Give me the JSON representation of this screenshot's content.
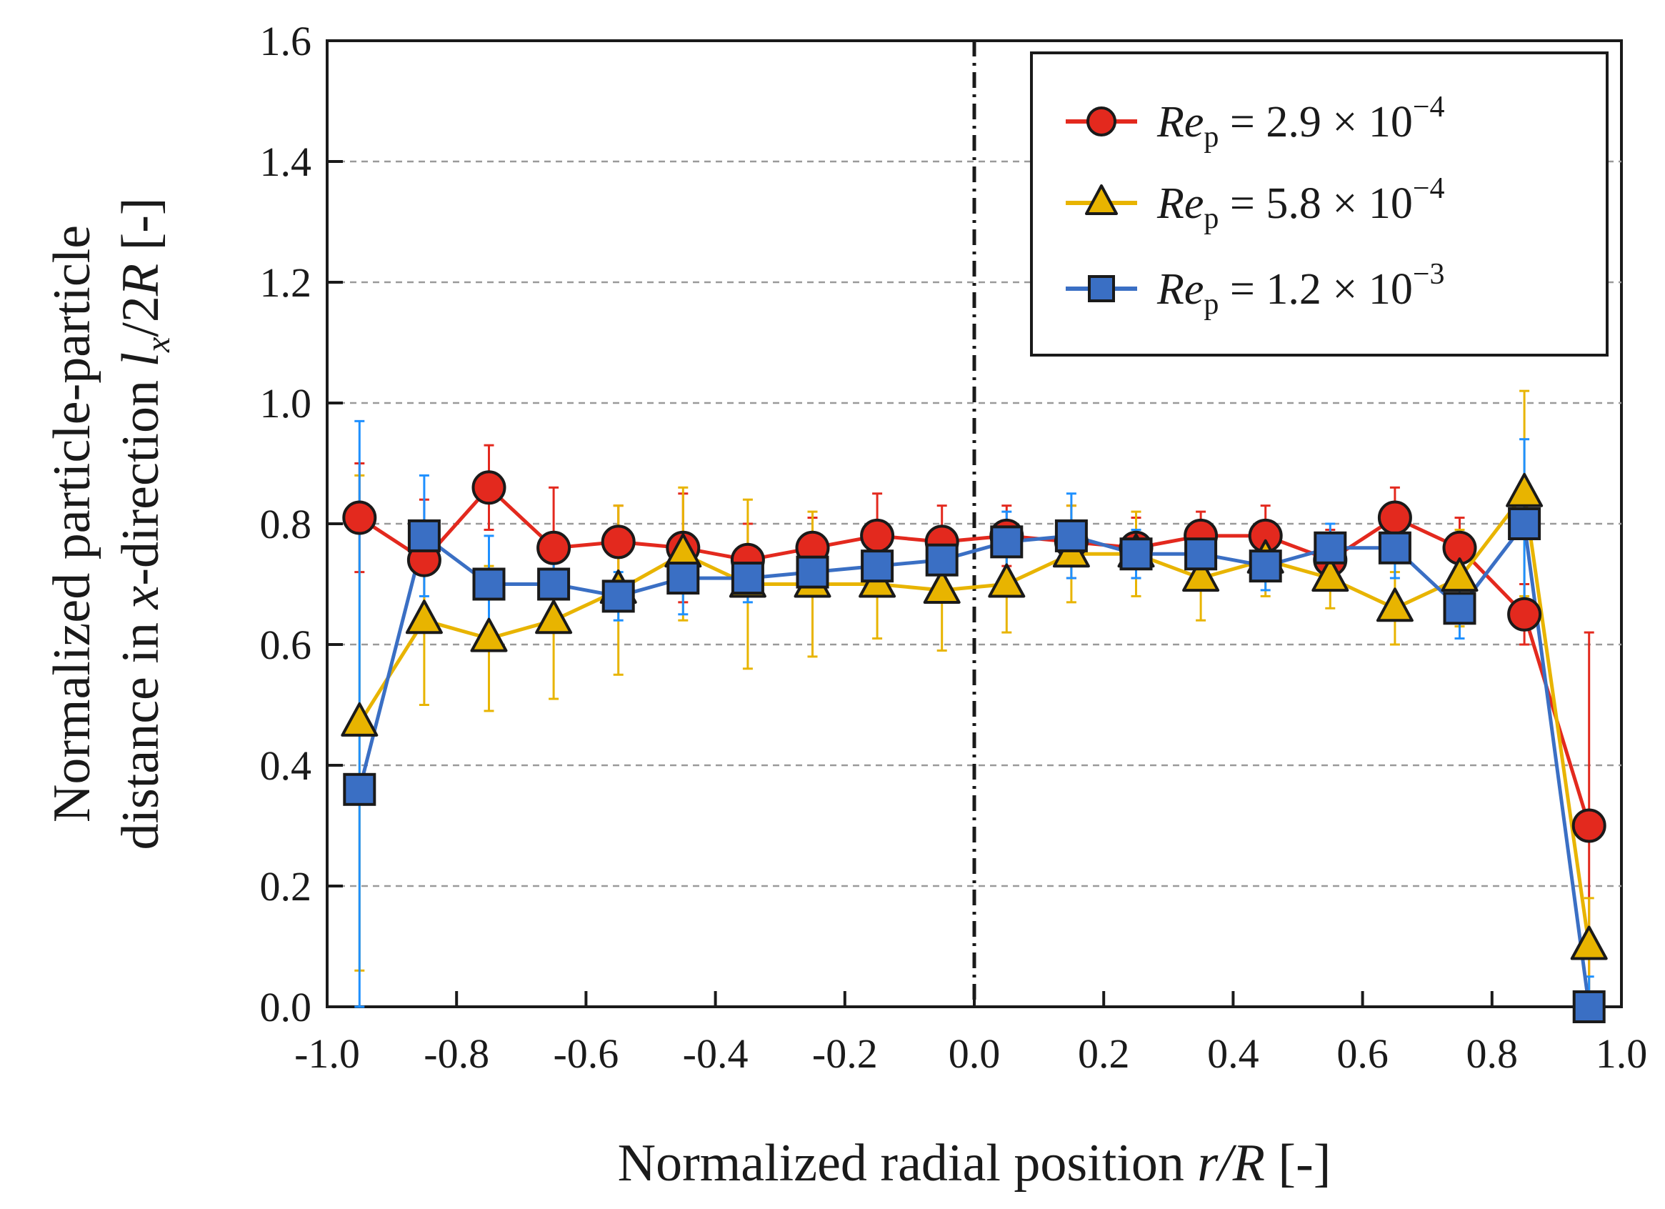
{
  "chart_data": {
    "type": "line",
    "title": "",
    "xlabel": {
      "pre": "Normalized radial position ",
      "var": "r/R",
      "post": " [-]"
    },
    "ylabel": {
      "line1": "Normalized particle-particle",
      "line2_pre": "distance in ",
      "line2_var": "x",
      "line2_mid": "-direction ",
      "line2_sym": "l",
      "line2_sub": "x",
      "line2_den": "/2",
      "line2_R": "R",
      "line2_post": " [-]"
    },
    "xlim": [
      -1.0,
      1.0
    ],
    "ylim": [
      0.0,
      1.6
    ],
    "x_ticks": [
      "-1.0",
      "-0.8",
      "-0.6",
      "-0.4",
      "-0.2",
      "0.0",
      "0.2",
      "0.4",
      "0.6",
      "0.8",
      "1.0"
    ],
    "y_ticks": [
      "0.0",
      "0.2",
      "0.4",
      "0.6",
      "0.8",
      "1.0",
      "1.2",
      "1.4",
      "1.6"
    ],
    "grid": "horizontal dashed",
    "reference_line": {
      "x": 0.0,
      "style": "dash-dot"
    },
    "legend_position": "top-right",
    "x": [
      -0.95,
      -0.85,
      -0.75,
      -0.65,
      -0.55,
      -0.45,
      -0.35,
      -0.25,
      -0.15,
      -0.05,
      0.05,
      0.15,
      0.25,
      0.35,
      0.45,
      0.55,
      0.65,
      0.75,
      0.85,
      0.95
    ],
    "series": [
      {
        "name": "Re_p = 2.9 × 10^-4",
        "label": {
          "re": "Re",
          "sub": "p",
          "val": " = 2.9 × 10",
          "exp": "−4"
        },
        "marker": "circle",
        "color": "#e3291e",
        "err_color": "#e3291e",
        "values": [
          0.81,
          0.74,
          0.86,
          0.76,
          0.77,
          0.76,
          0.74,
          0.76,
          0.78,
          0.77,
          0.78,
          0.77,
          0.76,
          0.78,
          0.78,
          0.74,
          0.81,
          0.76,
          0.65,
          0.3
        ],
        "errors": [
          0.09,
          0.1,
          0.07,
          0.1,
          0.06,
          0.09,
          0.06,
          0.05,
          0.07,
          0.06,
          0.05,
          0.06,
          0.05,
          0.04,
          0.05,
          0.05,
          0.05,
          0.05,
          0.05,
          0.32
        ]
      },
      {
        "name": "Re_p = 5.8 × 10^-4",
        "label": {
          "re": "Re",
          "sub": "p",
          "val": " = 5.8 × 10",
          "exp": "−4"
        },
        "marker": "triangle",
        "color": "#e8b400",
        "err_color": "#e8b400",
        "values": [
          0.47,
          0.64,
          0.61,
          0.64,
          0.69,
          0.75,
          0.7,
          0.7,
          0.7,
          0.69,
          0.7,
          0.75,
          0.75,
          0.71,
          0.74,
          0.71,
          0.66,
          0.71,
          0.85,
          0.1
        ],
        "errors": [
          0.41,
          0.14,
          0.12,
          0.13,
          0.14,
          0.11,
          0.14,
          0.12,
          0.09,
          0.1,
          0.08,
          0.08,
          0.07,
          0.07,
          0.06,
          0.05,
          0.06,
          0.08,
          0.17,
          0.08
        ]
      },
      {
        "name": "Re_p = 1.2 × 10^-3",
        "label": {
          "re": "Re",
          "sub": "p",
          "val": " = 1.2 × 10",
          "exp": "−3"
        },
        "marker": "square",
        "color": "#3a6fc4",
        "err_color": "#1e90ff",
        "values": [
          0.36,
          0.78,
          0.7,
          0.7,
          0.68,
          0.71,
          0.71,
          0.72,
          0.73,
          0.74,
          0.77,
          0.78,
          0.75,
          0.75,
          0.73,
          0.76,
          0.76,
          0.66,
          0.8,
          0.0
        ],
        "errors": [
          0.61,
          0.1,
          0.08,
          0.05,
          0.04,
          0.06,
          0.04,
          0.04,
          0.04,
          0.04,
          0.05,
          0.07,
          0.04,
          0.04,
          0.04,
          0.04,
          0.05,
          0.05,
          0.14,
          0.05
        ]
      }
    ]
  },
  "colors": {
    "axis": "#1a1a1a",
    "grid": "#9a9a9a",
    "marker_edge": "#1a1a1a"
  }
}
